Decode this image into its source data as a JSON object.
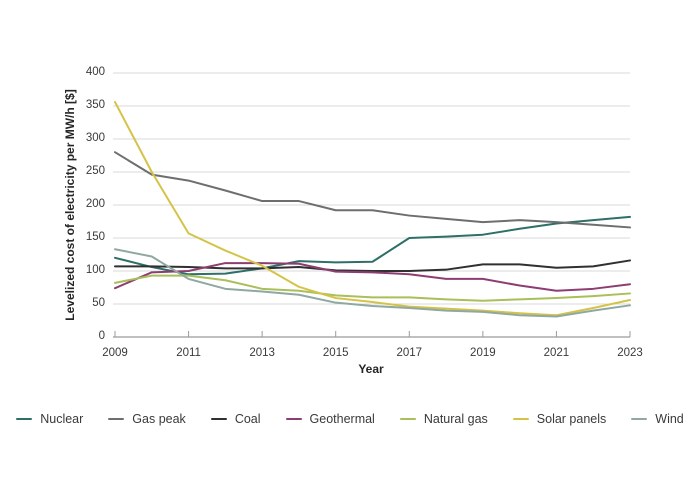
{
  "figure": {
    "background": "#ffffff",
    "grid_color": "#d9d9d9",
    "axis_color": "#9b9b9b",
    "tick_label_color": "#3a3a3a",
    "axis_title_color": "#262626"
  },
  "chart_data": {
    "type": "line",
    "title": "",
    "xlabel": "Year",
    "ylabel": "Levelized cost of electricity per MW/h [$]",
    "xlim": [
      2009,
      2023
    ],
    "ylim": [
      0,
      400
    ],
    "grid": "horizontal",
    "legend_position": "bottom",
    "x": [
      2009,
      2010,
      2011,
      2012,
      2013,
      2014,
      2015,
      2016,
      2017,
      2018,
      2019,
      2020,
      2021,
      2022,
      2023
    ],
    "x_ticks": [
      2009,
      2011,
      2013,
      2015,
      2017,
      2019,
      2021,
      2023
    ],
    "y_ticks": [
      0,
      50,
      100,
      150,
      200,
      250,
      300,
      350,
      400
    ],
    "series": [
      {
        "name": "Nuclear",
        "color": "#2e6f68",
        "values": [
          120,
          106,
          95,
          96,
          104,
          115,
          113,
          114,
          150,
          152,
          155,
          164,
          172,
          177,
          182
        ]
      },
      {
        "name": "Gas peak",
        "color": "#6e6e6e",
        "values": [
          280,
          246,
          237,
          222,
          206,
          206,
          192,
          192,
          184,
          179,
          174,
          177,
          174,
          170,
          166
        ]
      },
      {
        "name": "Coal",
        "color": "#303030",
        "values": [
          107,
          107,
          106,
          104,
          104,
          106,
          101,
          100,
          100,
          102,
          110,
          110,
          105,
          107,
          116
        ]
      },
      {
        "name": "Geothermal",
        "color": "#8e3d72",
        "values": [
          74,
          98,
          100,
          112,
          112,
          111,
          99,
          98,
          95,
          88,
          88,
          78,
          70,
          73,
          80
        ]
      },
      {
        "name": "Natural gas",
        "color": "#a9bf59",
        "values": [
          82,
          93,
          93,
          86,
          73,
          70,
          63,
          60,
          60,
          57,
          55,
          57,
          59,
          62,
          66
        ]
      },
      {
        "name": "Solar panels",
        "color": "#d5c347",
        "values": [
          356,
          250,
          157,
          131,
          108,
          76,
          59,
          53,
          46,
          43,
          40,
          36,
          33,
          44,
          56
        ]
      },
      {
        "name": "Wind",
        "color": "#8fa8a1",
        "values": [
          133,
          122,
          88,
          73,
          69,
          64,
          52,
          47,
          44,
          40,
          38,
          33,
          31,
          40,
          48
        ]
      }
    ]
  }
}
